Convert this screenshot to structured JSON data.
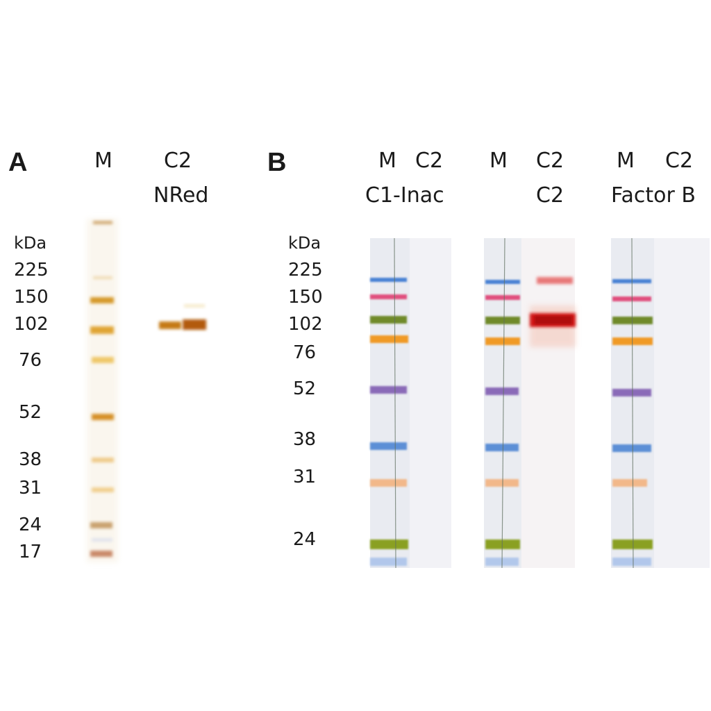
{
  "panel_a": {
    "letter": "A",
    "lane_marker": "M",
    "lane_sample": "C2",
    "lane_sample_sub": "NRed",
    "unit": "kDa",
    "mw_labels": [
      "225",
      "150",
      "102",
      "76",
      "52",
      "38",
      "31",
      "24",
      "17"
    ]
  },
  "panel_b": {
    "letter": "B",
    "unit": "kDa",
    "mw_labels": [
      "225",
      "150",
      "102",
      "76",
      "52",
      "38",
      "31",
      "24"
    ],
    "blots": [
      {
        "marker": "M",
        "sample": "C2",
        "title": "C1-Inac"
      },
      {
        "marker": "M",
        "sample": "C2",
        "title": "C2"
      },
      {
        "marker": "M",
        "sample": "C2",
        "title": "Factor B"
      }
    ]
  },
  "colors": {
    "silver_band": "#d9a23a",
    "silver_dark": "#a8640f",
    "ladder_blue": "#5b8fd6",
    "ladder_pink": "#e05a86",
    "ladder_green": "#7a8f2a",
    "ladder_orange": "#f0a030",
    "ladder_purple": "#8a6ab8",
    "ladder_peach": "#f2b88a",
    "ladder_lime": "#8aa020",
    "signal_red": "#d01818"
  }
}
